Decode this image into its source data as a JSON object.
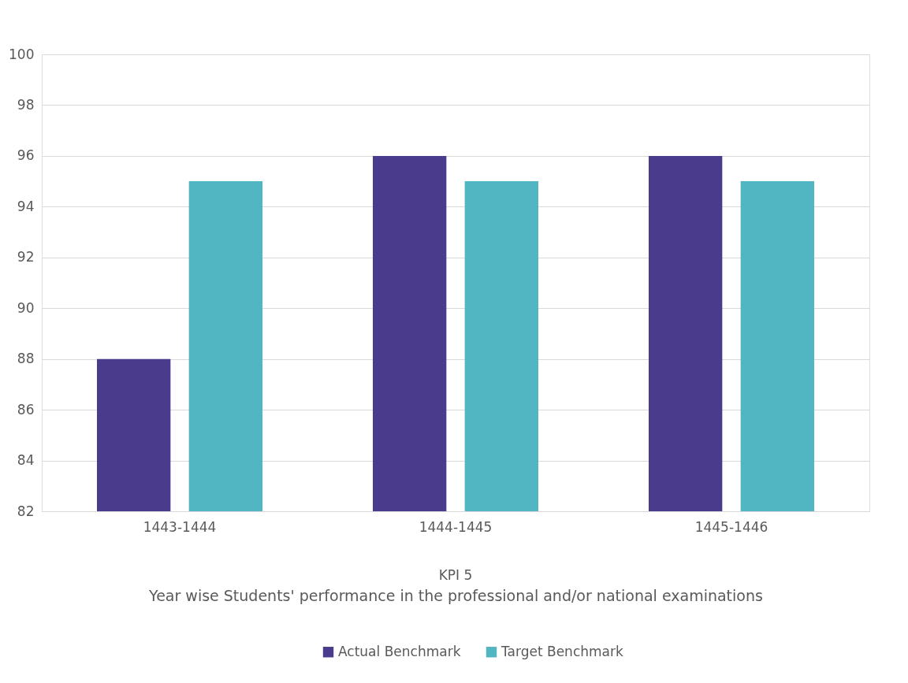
{
  "chart_data": {
    "type": "bar",
    "xlabel": "Year wise Students' performance in the professional and/or national examinations",
    "annotations": [
      "KPI 5"
    ],
    "categories": [
      "1443-1444",
      "1444-1445",
      "1445-1446"
    ],
    "series": [
      {
        "name": "Actual Benchmark",
        "color": "#4a3b8c",
        "values": [
          88,
          96,
          96
        ]
      },
      {
        "name": "Target Benchmark",
        "color": "#52b5c2",
        "values": [
          95,
          95,
          95
        ]
      }
    ],
    "ylim": [
      82,
      100
    ],
    "yticks": [
      82,
      84,
      86,
      88,
      90,
      92,
      94,
      96,
      98,
      100
    ],
    "grid": "y",
    "legend": "bottom"
  }
}
